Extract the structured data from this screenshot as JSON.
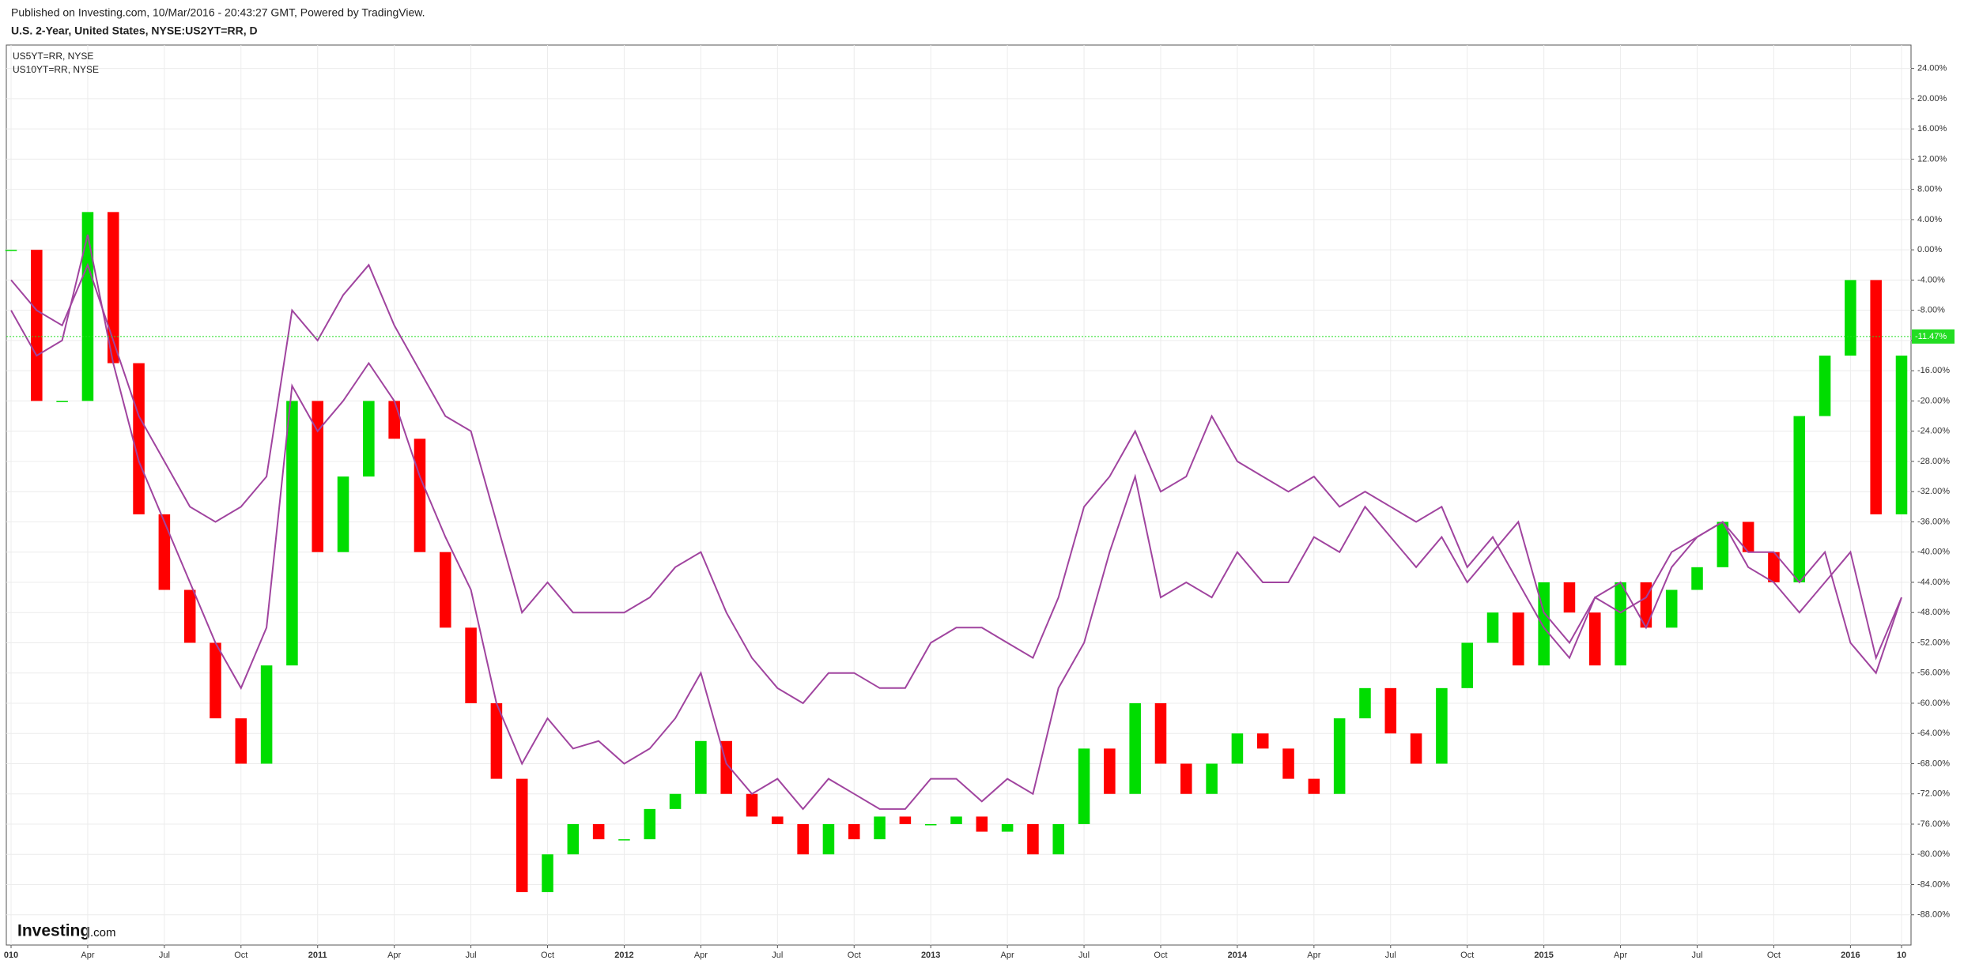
{
  "header": {
    "published": "Published on Investing.com, 10/Mar/2016 - 20:43:27 GMT, Powered by TradingView.",
    "instrument": "U.S. 2-Year, United States, NYSE:US2YT=RR, D"
  },
  "logo": {
    "brand": "Investing",
    "suffix": ".com"
  },
  "chart_data": {
    "type": "line",
    "x": [
      "2010-01",
      "2010-02",
      "2010-03",
      "2010-04",
      "2010-05",
      "2010-06",
      "2010-07",
      "2010-08",
      "2010-09",
      "2010-10",
      "2010-11",
      "2010-12",
      "2011-01",
      "2011-02",
      "2011-03",
      "2011-04",
      "2011-05",
      "2011-06",
      "2011-07",
      "2011-08",
      "2011-09",
      "2011-10",
      "2011-11",
      "2011-12",
      "2012-01",
      "2012-02",
      "2012-03",
      "2012-04",
      "2012-05",
      "2012-06",
      "2012-07",
      "2012-08",
      "2012-09",
      "2012-10",
      "2012-11",
      "2012-12",
      "2013-01",
      "2013-02",
      "2013-03",
      "2013-04",
      "2013-05",
      "2013-06",
      "2013-07",
      "2013-08",
      "2013-09",
      "2013-10",
      "2013-11",
      "2013-12",
      "2014-01",
      "2014-02",
      "2014-03",
      "2014-04",
      "2014-05",
      "2014-06",
      "2014-07",
      "2014-08",
      "2014-09",
      "2014-10",
      "2014-11",
      "2014-12",
      "2015-01",
      "2015-02",
      "2015-03",
      "2015-04",
      "2015-05",
      "2015-06",
      "2015-07",
      "2015-08",
      "2015-09",
      "2015-10",
      "2015-11",
      "2015-12",
      "2016-01",
      "2016-02",
      "2016-03"
    ],
    "main_series": {
      "up_color": "#00dd00",
      "down_color": "#ff0000",
      "values": [
        0,
        -20,
        -20,
        5,
        -15,
        -35,
        -45,
        -52,
        -62,
        -68,
        -55,
        -20,
        -40,
        -30,
        -20,
        -25,
        -40,
        -50,
        -60,
        -70,
        -85,
        -80,
        -76,
        -78,
        -78,
        -74,
        -72,
        -65,
        -72,
        -75,
        -76,
        -80,
        -76,
        -78,
        -75,
        -76,
        -76,
        -75,
        -77,
        -76,
        -80,
        -76,
        -66,
        -72,
        -60,
        -68,
        -72,
        -68,
        -64,
        -66,
        -70,
        -72,
        -62,
        -58,
        -64,
        -68,
        -58,
        -52,
        -48,
        -55,
        -44,
        -48,
        -55,
        -44,
        -50,
        -45,
        -42,
        -36,
        -40,
        -44,
        -22,
        -14,
        -4,
        -35,
        -14
      ]
    },
    "series": [
      {
        "name": "US5YT=RR, NYSE",
        "color": "#a0449f",
        "values": [
          -8,
          -14,
          -12,
          2,
          -15,
          -28,
          -36,
          -44,
          -52,
          -58,
          -50,
          -18,
          -24,
          -20,
          -15,
          -20,
          -30,
          -38,
          -45,
          -60,
          -68,
          -62,
          -66,
          -65,
          -68,
          -66,
          -62,
          -56,
          -68,
          -72,
          -70,
          -74,
          -70,
          -72,
          -74,
          -74,
          -70,
          -70,
          -73,
          -70,
          -72,
          -58,
          -52,
          -40,
          -30,
          -46,
          -44,
          -46,
          -40,
          -44,
          -44,
          -38,
          -40,
          -34,
          -38,
          -42,
          -38,
          -44,
          -40,
          -36,
          -48,
          -52,
          -46,
          -44,
          -50,
          -42,
          -38,
          -36,
          -40,
          -40,
          -44,
          -40,
          -52,
          -56,
          -46
        ]
      },
      {
        "name": "US10YT=RR, NYSE",
        "color": "#a0449f",
        "values": [
          -4,
          -8,
          -10,
          -2,
          -12,
          -22,
          -28,
          -34,
          -36,
          -34,
          -30,
          -8,
          -12,
          -6,
          -2,
          -10,
          -16,
          -22,
          -24,
          -36,
          -48,
          -44,
          -48,
          -48,
          -48,
          -46,
          -42,
          -40,
          -48,
          -54,
          -58,
          -60,
          -56,
          -56,
          -58,
          -58,
          -52,
          -50,
          -50,
          -52,
          -54,
          -46,
          -34,
          -30,
          -24,
          -32,
          -30,
          -22,
          -28,
          -30,
          -32,
          -30,
          -34,
          -32,
          -34,
          -36,
          -34,
          -42,
          -38,
          -44,
          -50,
          -54,
          -46,
          -48,
          -46,
          -40,
          -38,
          -36,
          -42,
          -44,
          -48,
          -44,
          -40,
          -54,
          -46
        ]
      }
    ],
    "last_value": {
      "value": -11.47,
      "label": "-11.47%",
      "color": "#22dd22"
    },
    "ylim": [
      -92,
      27.1
    ],
    "yticks": [
      {
        "value": 24,
        "label": "24.00%"
      },
      {
        "value": 20,
        "label": "20.00%"
      },
      {
        "value": 16,
        "label": "16.00%"
      },
      {
        "value": 12,
        "label": "12.00%"
      },
      {
        "value": 8,
        "label": "8.00%"
      },
      {
        "value": 4,
        "label": "4.00%"
      },
      {
        "value": 0,
        "label": "0.00%"
      },
      {
        "value": -4,
        "label": "-4.00%"
      },
      {
        "value": -8,
        "label": "-8.00%"
      },
      {
        "value": -12,
        "label": "-12.00%"
      },
      {
        "value": -16,
        "label": "-16.00%"
      },
      {
        "value": -20,
        "label": "-20.00%"
      },
      {
        "value": -24,
        "label": "-24.00%"
      },
      {
        "value": -28,
        "label": "-28.00%"
      },
      {
        "value": -32,
        "label": "-32.00%"
      },
      {
        "value": -36,
        "label": "-36.00%"
      },
      {
        "value": -40,
        "label": "-40.00%"
      },
      {
        "value": -44,
        "label": "-44.00%"
      },
      {
        "value": -48,
        "label": "-48.00%"
      },
      {
        "value": -52,
        "label": "-52.00%"
      },
      {
        "value": -56,
        "label": "-56.00%"
      },
      {
        "value": -60,
        "label": "-60.00%"
      },
      {
        "value": -64,
        "label": "-64.00%"
      },
      {
        "value": -68,
        "label": "-68.00%"
      },
      {
        "value": -72,
        "label": "-72.00%"
      },
      {
        "value": -76,
        "label": "-76.00%"
      },
      {
        "value": -80,
        "label": "-80.00%"
      },
      {
        "value": -84,
        "label": "-84.00%"
      },
      {
        "value": -88,
        "label": "-88.00%"
      }
    ],
    "xticks": [
      {
        "value": "2010-01",
        "label": "010"
      },
      {
        "value": "2010-04",
        "label": "Apr"
      },
      {
        "value": "2010-07",
        "label": "Jul"
      },
      {
        "value": "2010-10",
        "label": "Oct"
      },
      {
        "value": "2011-01",
        "label": "2011"
      },
      {
        "value": "2011-04",
        "label": "Apr"
      },
      {
        "value": "2011-07",
        "label": "Jul"
      },
      {
        "value": "2011-10",
        "label": "Oct"
      },
      {
        "value": "2012-01",
        "label": "2012"
      },
      {
        "value": "2012-04",
        "label": "Apr"
      },
      {
        "value": "2012-07",
        "label": "Jul"
      },
      {
        "value": "2012-10",
        "label": "Oct"
      },
      {
        "value": "2013-01",
        "label": "2013"
      },
      {
        "value": "2013-04",
        "label": "Apr"
      },
      {
        "value": "2013-07",
        "label": "Jul"
      },
      {
        "value": "2013-10",
        "label": "Oct"
      },
      {
        "value": "2014-01",
        "label": "2014"
      },
      {
        "value": "2014-04",
        "label": "Apr"
      },
      {
        "value": "2014-07",
        "label": "Jul"
      },
      {
        "value": "2014-10",
        "label": "Oct"
      },
      {
        "value": "2015-01",
        "label": "2015"
      },
      {
        "value": "2015-04",
        "label": "Apr"
      },
      {
        "value": "2015-07",
        "label": "Jul"
      },
      {
        "value": "2015-10",
        "label": "Oct"
      },
      {
        "value": "2016-01",
        "label": "2016"
      },
      {
        "value": "2016-03",
        "label": "10"
      }
    ],
    "grid": true
  }
}
